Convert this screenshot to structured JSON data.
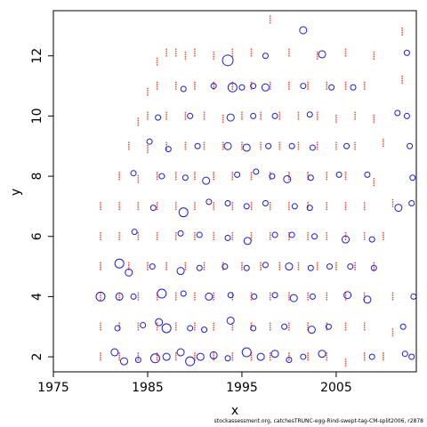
{
  "chart_data": {
    "type": "scatter",
    "title": "",
    "xlabel": "x",
    "ylabel": "y",
    "xlim": [
      1975,
      2013.5
    ],
    "ylim": [
      1.5,
      13.5
    ],
    "x_ticks": [
      1975,
      1985,
      1995,
      2005
    ],
    "x_tick_labels": [
      "1975",
      "1985",
      "1995",
      "2005"
    ],
    "y_ticks": [
      2,
      4,
      6,
      8,
      10,
      12
    ],
    "y_tick_labels": [
      "2",
      "4",
      "6",
      "8",
      "10",
      "12"
    ],
    "grid": false,
    "legend": "none",
    "series": [
      {
        "color": "#e8563a",
        "marker": "dot",
        "points": [
          [
            1986,
            11.8
          ],
          [
            1987,
            12.1
          ],
          [
            1988,
            12.1
          ],
          [
            1989,
            12.0
          ],
          [
            1990,
            12.1
          ],
          [
            1992,
            12.0
          ],
          [
            1994,
            12.1
          ],
          [
            1996,
            12.1
          ],
          [
            1998,
            13.2
          ],
          [
            2000,
            12.1
          ],
          [
            2003,
            12.0
          ],
          [
            2006,
            12.1
          ],
          [
            2009,
            12.0
          ],
          [
            2012,
            12.8
          ],
          [
            1985,
            10.8
          ],
          [
            1986,
            11.0
          ],
          [
            1988,
            11.0
          ],
          [
            1990,
            11.0
          ],
          [
            1992,
            11.0
          ],
          [
            1994,
            11.0
          ],
          [
            1996,
            11.0
          ],
          [
            1998,
            11.0
          ],
          [
            2000,
            11.0
          ],
          [
            2002,
            11.0
          ],
          [
            2004,
            11.0
          ],
          [
            2006,
            11.0
          ],
          [
            2008,
            11.0
          ],
          [
            2012,
            11.2
          ],
          [
            1984,
            9.8
          ],
          [
            1985,
            10.0
          ],
          [
            1987,
            10.0
          ],
          [
            1989,
            10.0
          ],
          [
            1991,
            10.0
          ],
          [
            1993,
            9.9
          ],
          [
            1995,
            10.0
          ],
          [
            1997,
            10.0
          ],
          [
            1999,
            10.0
          ],
          [
            2001,
            10.0
          ],
          [
            2003,
            10.0
          ],
          [
            2005,
            9.9
          ],
          [
            2007,
            10.0
          ],
          [
            2009,
            9.9
          ],
          [
            1983,
            9.0
          ],
          [
            1985,
            8.9
          ],
          [
            1987,
            9.0
          ],
          [
            1989,
            9.0
          ],
          [
            1991,
            9.0
          ],
          [
            1993,
            9.0
          ],
          [
            1995,
            9.0
          ],
          [
            1997,
            9.0
          ],
          [
            1999,
            9.0
          ],
          [
            2001,
            9.0
          ],
          [
            2003,
            9.0
          ],
          [
            2005,
            9.0
          ],
          [
            2007,
            9.0
          ],
          [
            2010,
            9.1
          ],
          [
            1982,
            8.0
          ],
          [
            1984,
            7.9
          ],
          [
            1986,
            8.0
          ],
          [
            1988,
            8.0
          ],
          [
            1990,
            8.0
          ],
          [
            1992,
            8.0
          ],
          [
            1994,
            8.0
          ],
          [
            1996,
            8.0
          ],
          [
            1998,
            8.0
          ],
          [
            2000,
            8.0
          ],
          [
            2002,
            8.0
          ],
          [
            2004,
            8.0
          ],
          [
            2006,
            8.0
          ],
          [
            2009,
            7.8
          ],
          [
            1980,
            7.0
          ],
          [
            1982,
            7.0
          ],
          [
            1984,
            7.0
          ],
          [
            1986,
            7.0
          ],
          [
            1988,
            7.0
          ],
          [
            1990,
            7.0
          ],
          [
            1992,
            7.0
          ],
          [
            1994,
            7.0
          ],
          [
            1996,
            7.0
          ],
          [
            1998,
            7.0
          ],
          [
            2000,
            7.0
          ],
          [
            2002,
            7.0
          ],
          [
            2004,
            7.0
          ],
          [
            2006,
            7.0
          ],
          [
            2008,
            7.0
          ],
          [
            2011,
            7.1
          ],
          [
            1980,
            6.0
          ],
          [
            1982,
            6.0
          ],
          [
            1984,
            6.0
          ],
          [
            1986,
            6.0
          ],
          [
            1988,
            6.0
          ],
          [
            1990,
            6.0
          ],
          [
            1992,
            6.0
          ],
          [
            1994,
            6.0
          ],
          [
            1996,
            6.0
          ],
          [
            1998,
            6.0
          ],
          [
            2000,
            6.0
          ],
          [
            2002,
            6.0
          ],
          [
            2004,
            6.0
          ],
          [
            2006,
            6.0
          ],
          [
            2008,
            6.0
          ],
          [
            2010,
            6.0
          ],
          [
            1980,
            5.0
          ],
          [
            1983,
            5.0
          ],
          [
            1985,
            5.0
          ],
          [
            1987,
            5.0
          ],
          [
            1989,
            5.0
          ],
          [
            1991,
            5.0
          ],
          [
            1993,
            5.0
          ],
          [
            1995,
            5.0
          ],
          [
            1997,
            5.0
          ],
          [
            1999,
            5.0
          ],
          [
            2001,
            5.0
          ],
          [
            2003,
            5.0
          ],
          [
            2005,
            5.0
          ],
          [
            2007,
            5.0
          ],
          [
            2009,
            5.0
          ],
          [
            1980,
            4.0
          ],
          [
            1982,
            4.0
          ],
          [
            1984,
            4.0
          ],
          [
            1986,
            4.0
          ],
          [
            1988,
            4.0
          ],
          [
            1990,
            4.0
          ],
          [
            1992,
            4.0
          ],
          [
            1994,
            4.0
          ],
          [
            1996,
            4.0
          ],
          [
            1998,
            4.0
          ],
          [
            2000,
            4.0
          ],
          [
            2002,
            4.0
          ],
          [
            2004,
            4.0
          ],
          [
            2006,
            4.0
          ],
          [
            2008,
            4.0
          ],
          [
            2011,
            4.0
          ],
          [
            1980,
            3.0
          ],
          [
            1982,
            3.0
          ],
          [
            1984,
            3.0
          ],
          [
            1986,
            3.0
          ],
          [
            1988,
            3.0
          ],
          [
            1990,
            3.0
          ],
          [
            1992,
            3.0
          ],
          [
            1994,
            3.0
          ],
          [
            1996,
            3.0
          ],
          [
            1998,
            3.0
          ],
          [
            2000,
            3.0
          ],
          [
            2002,
            3.0
          ],
          [
            2004,
            3.0
          ],
          [
            2006,
            3.0
          ],
          [
            2008,
            3.0
          ],
          [
            2011,
            2.8
          ],
          [
            1980,
            2.0
          ],
          [
            1982,
            2.0
          ],
          [
            1984,
            2.0
          ],
          [
            1986,
            2.0
          ],
          [
            1988,
            2.0
          ],
          [
            1990,
            2.0
          ],
          [
            1992,
            2.0
          ],
          [
            1994,
            2.0
          ],
          [
            1996,
            2.0
          ],
          [
            1998,
            2.0
          ],
          [
            2000,
            2.0
          ],
          [
            2002,
            2.0
          ],
          [
            2004,
            2.0
          ],
          [
            2006,
            1.8
          ],
          [
            2008,
            2.0
          ],
          [
            2010,
            2.0
          ]
        ]
      },
      {
        "color": "#1a1ae6",
        "marker": "open-circle",
        "points": [
          [
            2001.5,
            12.85,
            4
          ],
          [
            1993.5,
            11.85,
            6
          ],
          [
            1997.5,
            12.0,
            3
          ],
          [
            2003.5,
            12.05,
            4
          ],
          [
            2012.5,
            12.1,
            3
          ],
          [
            1988.8,
            10.9,
            3
          ],
          [
            1992,
            11.0,
            3
          ],
          [
            1994,
            10.95,
            5
          ],
          [
            1995,
            10.95,
            3
          ],
          [
            1996.2,
            11.0,
            3
          ],
          [
            1997.5,
            10.95,
            4
          ],
          [
            2001.5,
            11.0,
            3
          ],
          [
            2004.5,
            10.95,
            3
          ],
          [
            2006.8,
            10.95,
            3
          ],
          [
            1986.1,
            9.95,
            3
          ],
          [
            1989.5,
            10.0,
            3
          ],
          [
            1993.8,
            9.95,
            4
          ],
          [
            1996.2,
            10.0,
            3
          ],
          [
            1998.5,
            10.0,
            3
          ],
          [
            2002.2,
            10.05,
            3
          ],
          [
            2011.5,
            10.1,
            3
          ],
          [
            2012.5,
            10.0,
            3
          ],
          [
            1985.2,
            9.15,
            3
          ],
          [
            1987.2,
            8.9,
            3
          ],
          [
            1990.3,
            9.0,
            3
          ],
          [
            1993.5,
            9.0,
            4
          ],
          [
            1995.5,
            8.95,
            4
          ],
          [
            1997.8,
            9.0,
            3
          ],
          [
            2000.3,
            9.0,
            3
          ],
          [
            2002.5,
            8.95,
            3
          ],
          [
            2006.1,
            9.0,
            3
          ],
          [
            2012.8,
            9.0,
            3
          ],
          [
            1983.5,
            8.1,
            3
          ],
          [
            1986.5,
            8.0,
            3
          ],
          [
            1989,
            7.95,
            3
          ],
          [
            1991.2,
            7.85,
            4
          ],
          [
            1994.5,
            8.05,
            3
          ],
          [
            1996.5,
            8.15,
            3
          ],
          [
            1998.2,
            8.0,
            3
          ],
          [
            1999.8,
            7.9,
            4
          ],
          [
            2002.3,
            7.95,
            3
          ],
          [
            2005.3,
            8.05,
            3
          ],
          [
            2008.3,
            8.05,
            3
          ],
          [
            2013.1,
            7.95,
            3
          ],
          [
            1985.6,
            6.95,
            3
          ],
          [
            1988.8,
            6.8,
            5
          ],
          [
            1991.5,
            7.15,
            3
          ],
          [
            1993.5,
            7.1,
            3
          ],
          [
            1995.5,
            7.0,
            3
          ],
          [
            1997.5,
            7.1,
            3
          ],
          [
            2000.6,
            7.0,
            3
          ],
          [
            2002.2,
            6.95,
            3
          ],
          [
            2011.6,
            6.95,
            4
          ],
          [
            2013,
            7.1,
            3
          ],
          [
            1983.6,
            6.15,
            3
          ],
          [
            1988.5,
            6.1,
            3
          ],
          [
            1990.5,
            6.05,
            3
          ],
          [
            1993.5,
            5.95,
            3
          ],
          [
            1995.6,
            5.85,
            4
          ],
          [
            1998.5,
            6.05,
            3
          ],
          [
            2000.3,
            6.05,
            3
          ],
          [
            2002.7,
            6.0,
            3
          ],
          [
            2006,
            5.9,
            4
          ],
          [
            2008.8,
            5.9,
            3
          ],
          [
            1982,
            5.1,
            5
          ],
          [
            1983,
            4.8,
            4
          ],
          [
            1985.5,
            5.0,
            3
          ],
          [
            1988.5,
            4.85,
            4
          ],
          [
            1990.5,
            4.95,
            3
          ],
          [
            1993.2,
            5.0,
            3
          ],
          [
            1995.5,
            4.95,
            3
          ],
          [
            1997.5,
            5.05,
            3
          ],
          [
            2000,
            5.0,
            4
          ],
          [
            2002.3,
            4.95,
            3
          ],
          [
            2004.3,
            5.0,
            3
          ],
          [
            2006.5,
            5.0,
            3
          ],
          [
            2009,
            4.95,
            3
          ],
          [
            1980,
            4.0,
            5
          ],
          [
            1982,
            4.0,
            4
          ],
          [
            1983.5,
            4.0,
            3
          ],
          [
            1986.5,
            4.1,
            5
          ],
          [
            1988.8,
            4.1,
            3
          ],
          [
            1991.5,
            4.0,
            4
          ],
          [
            1993.8,
            4.05,
            3
          ],
          [
            1996.3,
            4.0,
            3
          ],
          [
            1998.5,
            4.05,
            3
          ],
          [
            2000.5,
            3.95,
            4
          ],
          [
            2002.5,
            4.0,
            3
          ],
          [
            2006.2,
            4.05,
            4
          ],
          [
            2008.3,
            3.9,
            4
          ],
          [
            2013.2,
            4.0,
            3
          ],
          [
            1981.8,
            2.95,
            3
          ],
          [
            1984.5,
            3.05,
            3
          ],
          [
            1986.2,
            3.15,
            4
          ],
          [
            1987,
            2.95,
            5
          ],
          [
            1989.5,
            2.95,
            3
          ],
          [
            1991,
            2.9,
            3
          ],
          [
            1993.8,
            3.2,
            4
          ],
          [
            1996.2,
            2.95,
            3
          ],
          [
            1999.5,
            3.0,
            3
          ],
          [
            2002.4,
            2.9,
            4
          ],
          [
            2004.2,
            3.0,
            3
          ],
          [
            2012.1,
            3.0,
            3
          ],
          [
            1981.5,
            2.15,
            4
          ],
          [
            1982.5,
            1.85,
            4
          ],
          [
            1984,
            1.9,
            3
          ],
          [
            1985.8,
            1.95,
            5
          ],
          [
            1987,
            2.0,
            4
          ],
          [
            1988.5,
            2.15,
            4
          ],
          [
            1989.5,
            1.85,
            5
          ],
          [
            1990.6,
            2.0,
            4
          ],
          [
            1992,
            2.05,
            4
          ],
          [
            1993.5,
            1.95,
            3
          ],
          [
            1995.5,
            2.15,
            5
          ],
          [
            1997,
            2.0,
            4
          ],
          [
            1998.5,
            2.1,
            4
          ],
          [
            2000,
            1.9,
            3
          ],
          [
            2001.5,
            2.0,
            3
          ],
          [
            2003.5,
            2.1,
            4
          ],
          [
            2008.8,
            2.0,
            3
          ],
          [
            2012.3,
            2.1,
            3
          ],
          [
            2013,
            2.0,
            3
          ]
        ]
      }
    ]
  },
  "footer": "stockassessment.org, catchesTRUNC-egg-Rind-swept-tag-CM-split2006, r2878"
}
